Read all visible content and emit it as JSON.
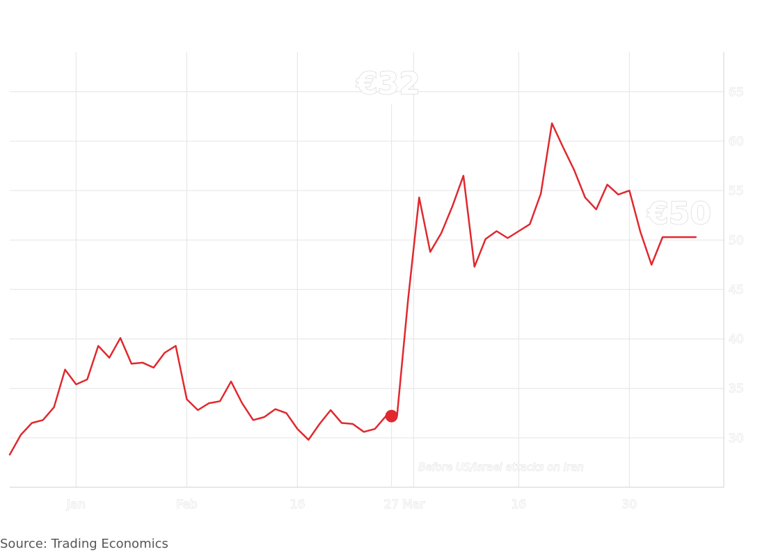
{
  "chart_data": {
    "type": "line",
    "title": "",
    "xlabel": "",
    "ylabel": "",
    "currency_prefix": "€",
    "ylim": [
      25,
      69
    ],
    "grid": true,
    "y_ticks": [
      30,
      35,
      40,
      45,
      50,
      55,
      60,
      65
    ],
    "y_axis_side": "right",
    "x_ticks": [
      {
        "label": "Jan",
        "index": 6
      },
      {
        "label": "Feb",
        "index": 16
      },
      {
        "label": "16",
        "index": 26
      },
      {
        "label": "27",
        "index": 34.5
      },
      {
        "label": "Mar",
        "index": 36.5
      },
      {
        "label": "16",
        "index": 46
      },
      {
        "label": "30",
        "index": 56
      }
    ],
    "series": [
      {
        "color": "#e0282e",
        "values": [
          28.3,
          30.3,
          31.5,
          31.8,
          33.1,
          36.9,
          35.4,
          35.9,
          39.3,
          38.1,
          40.1,
          37.5,
          37.6,
          37.1,
          38.6,
          39.3,
          33.9,
          32.8,
          33.5,
          33.7,
          35.7,
          33.5,
          31.8,
          32.1,
          32.9,
          32.5,
          30.9,
          29.8,
          31.4,
          32.8,
          31.5,
          31.4,
          30.6,
          30.9,
          32.2,
          32.2,
          44.0,
          54.3,
          48.8,
          50.7,
          53.4,
          56.5,
          47.3,
          50.1,
          50.9,
          50.2,
          50.9,
          51.6,
          54.7,
          61.8,
          59.4,
          57.1,
          54.3,
          53.1,
          55.6,
          54.6,
          55.0,
          50.8,
          47.5,
          50.3,
          50.3,
          50.3,
          50.3
        ]
      }
    ],
    "highlight": {
      "index": 34.5,
      "value": 32.2,
      "label": "€32"
    },
    "end_label": {
      "value": 50,
      "label": "€50"
    },
    "annotation": "Before US/Israel attacks on Iran"
  },
  "source": "Source: Trading Economics"
}
